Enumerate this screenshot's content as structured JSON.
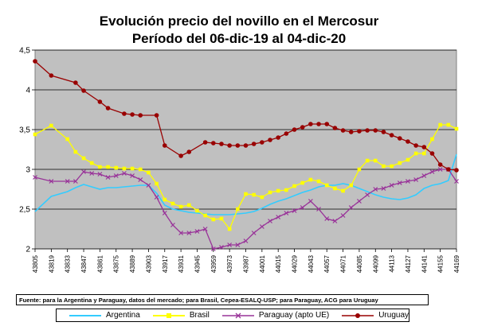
{
  "chart_data": {
    "type": "line",
    "title": "Evolución precio del novillo en el Mercosur",
    "subtitle": "Período del 06-dic-19 al 04-dic-20",
    "ylim": [
      2,
      4.5
    ],
    "yticks": [
      "2",
      "2,5",
      "3",
      "3,5",
      "4",
      "4,5"
    ],
    "ytick_values": [
      2,
      2.5,
      3,
      3.5,
      4,
      4.5
    ],
    "xlim": [
      43805,
      44169
    ],
    "xticks": [
      43805,
      43819,
      43833,
      43847,
      43861,
      43875,
      43889,
      43903,
      43917,
      43931,
      43945,
      43959,
      43973,
      43987,
      44001,
      44015,
      44029,
      44043,
      44057,
      44071,
      44085,
      44099,
      44113,
      44127,
      44141,
      44155,
      44169
    ],
    "grid": true,
    "legend_position": "bottom",
    "series": [
      {
        "name": "Argentina",
        "color": "#33ccff",
        "marker": "none",
        "x": [
          43805,
          43819,
          43833,
          43840,
          43847,
          43854,
          43861,
          43868,
          43875,
          43882,
          43889,
          43896,
          43903,
          43910,
          43917,
          43924,
          43931,
          43938,
          43945,
          43952,
          43959,
          43966,
          43973,
          43980,
          43987,
          43994,
          44001,
          44008,
          44015,
          44022,
          44029,
          44036,
          44043,
          44050,
          44057,
          44064,
          44071,
          44078,
          44085,
          44092,
          44099,
          44106,
          44113,
          44120,
          44127,
          44134,
          44141,
          44148,
          44155,
          44162,
          44169
        ],
        "values": [
          2.47,
          2.66,
          2.72,
          2.77,
          2.81,
          2.78,
          2.75,
          2.77,
          2.77,
          2.78,
          2.79,
          2.8,
          2.8,
          2.7,
          2.55,
          2.5,
          2.48,
          2.46,
          2.45,
          2.44,
          2.43,
          2.43,
          2.43,
          2.44,
          2.45,
          2.47,
          2.51,
          2.56,
          2.6,
          2.63,
          2.67,
          2.71,
          2.74,
          2.78,
          2.8,
          2.8,
          2.82,
          2.8,
          2.76,
          2.72,
          2.68,
          2.65,
          2.63,
          2.62,
          2.64,
          2.68,
          2.76,
          2.8,
          2.82,
          2.86,
          3.19
        ]
      },
      {
        "name": "Brasil",
        "color": "#ffff00",
        "marker": "square",
        "x": [
          43805,
          43819,
          43833,
          43840,
          43847,
          43854,
          43861,
          43868,
          43875,
          43882,
          43889,
          43896,
          43903,
          43910,
          43917,
          43924,
          43931,
          43938,
          43945,
          43952,
          43959,
          43966,
          43973,
          43980,
          43987,
          43994,
          44001,
          44008,
          44015,
          44022,
          44029,
          44036,
          44043,
          44050,
          44057,
          44064,
          44071,
          44078,
          44085,
          44092,
          44099,
          44106,
          44113,
          44120,
          44127,
          44134,
          44141,
          44148,
          44155,
          44162,
          44169
        ],
        "values": [
          3.44,
          3.55,
          3.38,
          3.22,
          3.14,
          3.08,
          3.03,
          3.03,
          3.02,
          3.01,
          3.01,
          3.0,
          2.96,
          2.82,
          2.62,
          2.57,
          2.53,
          2.55,
          2.48,
          2.42,
          2.37,
          2.38,
          2.25,
          2.5,
          2.69,
          2.68,
          2.65,
          2.71,
          2.73,
          2.74,
          2.79,
          2.83,
          2.87,
          2.85,
          2.8,
          2.76,
          2.73,
          2.8,
          3.0,
          3.11,
          3.11,
          3.04,
          3.04,
          3.08,
          3.12,
          3.2,
          3.2,
          3.38,
          3.56,
          3.56,
          3.51
        ]
      },
      {
        "name": "Paraguay (apto UE)",
        "color": "#993399",
        "marker": "x",
        "x": [
          43805,
          43819,
          43833,
          43840,
          43847,
          43854,
          43861,
          43868,
          43875,
          43882,
          43889,
          43896,
          43903,
          43910,
          43917,
          43924,
          43931,
          43938,
          43945,
          43952,
          43959,
          43966,
          43973,
          43980,
          43987,
          43994,
          44001,
          44008,
          44015,
          44022,
          44029,
          44036,
          44043,
          44050,
          44057,
          44064,
          44071,
          44078,
          44085,
          44092,
          44099,
          44106,
          44113,
          44120,
          44127,
          44134,
          44141,
          44148,
          44155,
          44162,
          44169
        ],
        "values": [
          2.9,
          2.85,
          2.85,
          2.85,
          2.97,
          2.95,
          2.94,
          2.9,
          2.92,
          2.95,
          2.92,
          2.87,
          2.8,
          2.65,
          2.45,
          2.3,
          2.2,
          2.2,
          2.22,
          2.25,
          2.0,
          2.02,
          2.05,
          2.05,
          2.1,
          2.2,
          2.28,
          2.35,
          2.4,
          2.45,
          2.48,
          2.52,
          2.6,
          2.5,
          2.38,
          2.35,
          2.42,
          2.52,
          2.6,
          2.68,
          2.75,
          2.76,
          2.8,
          2.83,
          2.85,
          2.87,
          2.92,
          2.97,
          3.0,
          3.0,
          2.85
        ]
      },
      {
        "name": "Uruguay",
        "color": "#990000",
        "marker": "circle",
        "x": [
          43805,
          43819,
          43840,
          43847,
          43861,
          43868,
          43882,
          43889,
          43896,
          43910,
          43917,
          43931,
          43938,
          43952,
          43959,
          43966,
          43973,
          43980,
          43987,
          43994,
          44001,
          44008,
          44015,
          44022,
          44029,
          44036,
          44043,
          44050,
          44057,
          44064,
          44071,
          44078,
          44085,
          44092,
          44099,
          44106,
          44113,
          44120,
          44127,
          44134,
          44141,
          44148,
          44155,
          44162,
          44169
        ],
        "values": [
          4.36,
          4.18,
          4.09,
          3.99,
          3.85,
          3.77,
          3.7,
          3.69,
          3.68,
          3.68,
          3.3,
          3.17,
          3.22,
          3.34,
          3.33,
          3.32,
          3.3,
          3.3,
          3.3,
          3.32,
          3.34,
          3.37,
          3.4,
          3.45,
          3.5,
          3.53,
          3.57,
          3.57,
          3.57,
          3.52,
          3.49,
          3.47,
          3.48,
          3.49,
          3.49,
          3.47,
          3.43,
          3.39,
          3.35,
          3.3,
          3.28,
          3.2,
          3.06,
          3.0,
          2.99
        ]
      }
    ]
  },
  "source_text": "Fuente: para la Argentina y Paraguay, datos del mercado; para Brasil, Cepea-ESALQ-USP; para Paraguay, ACG para Uruguay",
  "legend": [
    {
      "label": "Argentina"
    },
    {
      "label": "Brasil"
    },
    {
      "label": "Paraguay (apto UE)"
    },
    {
      "label": "Uruguay"
    }
  ]
}
